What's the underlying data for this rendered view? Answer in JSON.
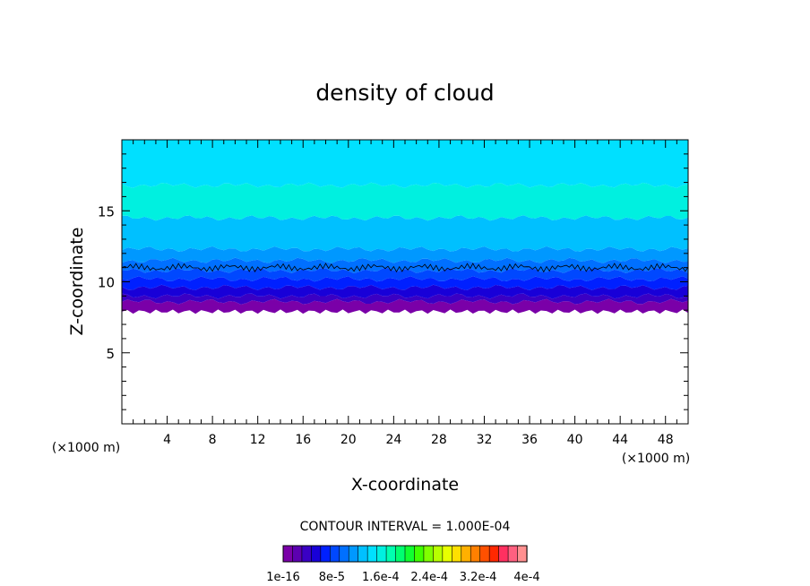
{
  "chart_data": {
    "type": "heatmap",
    "title": "density of cloud",
    "xlabel": "X-coordinate",
    "ylabel": "Z-coordinate",
    "x_unit": "(×1000 m)",
    "y_unit": "(×1000 m)",
    "xlim": [
      0,
      50
    ],
    "ylim": [
      0,
      20
    ],
    "x_ticks": [
      "4",
      "8",
      "12",
      "16",
      "20",
      "24",
      "28",
      "32",
      "36",
      "40",
      "44",
      "48"
    ],
    "y_ticks": [
      "5",
      "10",
      "15"
    ],
    "contour_interval_label": "CONTOUR INTERVAL = 1.000E-04",
    "colorbar_labels": [
      "1e-16",
      "8e-5",
      "1.6e-4",
      "2.4e-4",
      "3.2e-4",
      "4e-4"
    ],
    "colorbar_colors": [
      "#7a00a8",
      "#5c00b0",
      "#3a00c4",
      "#1800d8",
      "#0020ff",
      "#0048ff",
      "#0070ff",
      "#0098ff",
      "#00c0ff",
      "#00e0ff",
      "#00f0e0",
      "#00ffb0",
      "#00ff70",
      "#10ff30",
      "#40ff00",
      "#80ff00",
      "#b8ff00",
      "#e8ff00",
      "#ffe000",
      "#ffb000",
      "#ff8000",
      "#ff5000",
      "#ff2800",
      "#ff3060",
      "#ff6080",
      "#ff9090"
    ],
    "cloud_layers": [
      {
        "z_bottom": 7.9,
        "z_top": 8.6,
        "color": "#7a00a8"
      },
      {
        "z_bottom": 8.6,
        "z_top": 9.0,
        "color": "#3a00c4"
      },
      {
        "z_bottom": 9.0,
        "z_top": 9.6,
        "color": "#1800d8"
      },
      {
        "z_bottom": 9.6,
        "z_top": 10.2,
        "color": "#0020ff"
      },
      {
        "z_bottom": 10.2,
        "z_top": 10.8,
        "color": "#0048ff"
      },
      {
        "z_bottom": 10.8,
        "z_top": 11.5,
        "color": "#0070ff"
      },
      {
        "z_bottom": 11.5,
        "z_top": 12.3,
        "color": "#0098ff"
      },
      {
        "z_bottom": 12.3,
        "z_top": 14.5,
        "color": "#00c0ff"
      },
      {
        "z_bottom": 14.5,
        "z_top": 16.8,
        "color": "#00f0e0"
      },
      {
        "z_bottom": 16.8,
        "z_top": 20.0,
        "color": "#00e0ff"
      }
    ],
    "contour_line_z": 11.0,
    "grid": false
  }
}
